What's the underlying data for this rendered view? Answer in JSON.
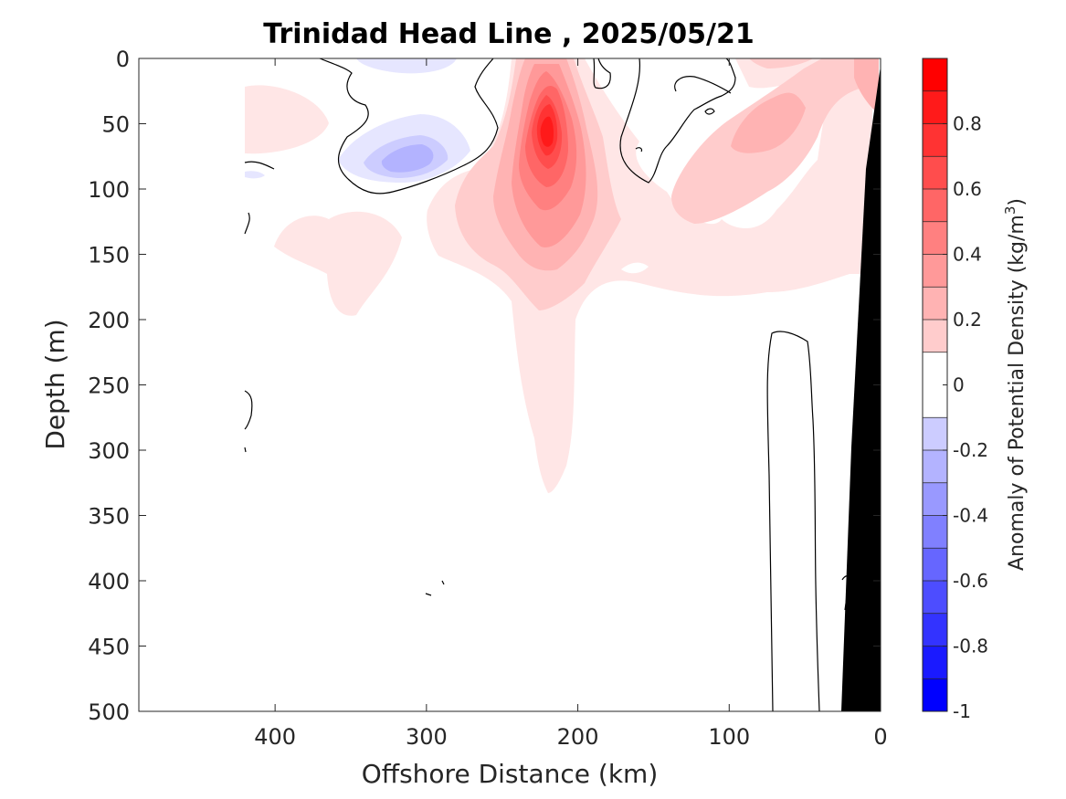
{
  "chart_data": {
    "type": "heatmap",
    "title": "Trinidad Head Line , 2025/05/21",
    "xlabel": "Offshore Distance (km)",
    "ylabel": "Depth (m)",
    "xlim": [
      490,
      0
    ],
    "ylim": [
      0,
      500
    ],
    "x_reversed": true,
    "y_reversed": true,
    "xticks": [
      400,
      300,
      200,
      100,
      0
    ],
    "yticks": [
      0,
      50,
      100,
      150,
      200,
      250,
      300,
      350,
      400,
      450,
      500
    ],
    "colorbar": {
      "label_main": "Anomaly of Potential Density (kg/m",
      "label_sup": "3",
      "label_end": ")",
      "range": [
        -1,
        1
      ],
      "tick_values": [
        0.8,
        0.6,
        0.4,
        0.2,
        0,
        -0.2,
        -0.4,
        -0.6,
        -0.8,
        -1
      ],
      "tick_labels": [
        "0.8",
        "0.6",
        "0.4",
        "0.2",
        "0",
        "-0.2",
        "-0.4",
        "-0.6",
        "-0.8",
        "-1"
      ],
      "levels": [
        -1,
        -0.9,
        -0.8,
        -0.7,
        -0.6,
        -0.5,
        -0.4,
        -0.3,
        -0.2,
        -0.1,
        0.1,
        0.2,
        0.3,
        0.4,
        0.5,
        0.6,
        0.7,
        0.8,
        0.9,
        1.0
      ],
      "colors_negative": [
        "#0000ff",
        "#1a1aff",
        "#3333ff",
        "#4d4dff",
        "#6666ff",
        "#8080ff",
        "#9999ff",
        "#b3b3ff",
        "#ccccff",
        "#e6e6ff"
      ],
      "colors_positive": [
        "#ffe6e6",
        "#ffcccc",
        "#ffb3b3",
        "#ff9999",
        "#ff8080",
        "#ff6666",
        "#ff4d4d",
        "#ff3333",
        "#ff1a1a",
        "#ff0000"
      ]
    },
    "features": [
      {
        "name": "core-positive-anomaly",
        "x_center_km": 220,
        "depth_center_m": 70,
        "peak": 0.9
      },
      {
        "name": "negative-anomaly",
        "x_center_km": 325,
        "depth_center_m": 75,
        "peak": -0.35
      },
      {
        "name": "positive-near-shore",
        "x_center_km": 60,
        "depth_center_m": 50,
        "peak": 0.45
      },
      {
        "name": "seafloor",
        "color": "#000000"
      }
    ]
  }
}
